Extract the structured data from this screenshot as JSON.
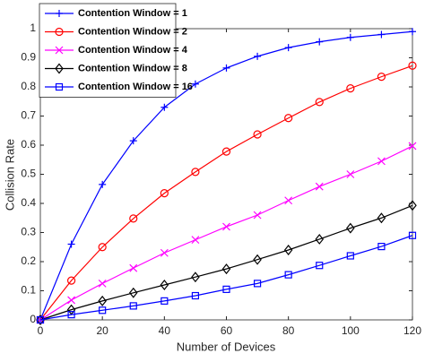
{
  "chart_data": {
    "type": "line",
    "xlabel": "Number of Devices",
    "ylabel": "Collision Rate",
    "x": [
      0,
      10,
      20,
      30,
      40,
      50,
      60,
      70,
      80,
      90,
      100,
      110,
      120
    ],
    "series": [
      {
        "name": "Contention Window = 1",
        "color": "#0000ff",
        "marker": "plus",
        "values": [
          0,
          0.26,
          0.465,
          0.615,
          0.73,
          0.81,
          0.865,
          0.905,
          0.935,
          0.955,
          0.97,
          0.98,
          0.99
        ]
      },
      {
        "name": "Contention Window = 2",
        "color": "#ff0000",
        "marker": "circle",
        "values": [
          0,
          0.135,
          0.25,
          0.348,
          0.435,
          0.508,
          0.578,
          0.637,
          0.693,
          0.748,
          0.795,
          0.835,
          0.873
        ]
      },
      {
        "name": "Contention Window = 4",
        "color": "#ff00ff",
        "marker": "cross",
        "values": [
          0,
          0.068,
          0.125,
          0.178,
          0.23,
          0.275,
          0.32,
          0.36,
          0.41,
          0.458,
          0.5,
          0.545,
          0.597
        ]
      },
      {
        "name": "Contention Window = 8",
        "color": "#000000",
        "marker": "diamond",
        "values": [
          0,
          0.035,
          0.065,
          0.093,
          0.12,
          0.147,
          0.175,
          0.207,
          0.24,
          0.277,
          0.315,
          0.35,
          0.393
        ]
      },
      {
        "name": "Contention Window = 16",
        "color": "#0000ff",
        "marker": "square",
        "values": [
          0,
          0.018,
          0.033,
          0.048,
          0.065,
          0.083,
          0.105,
          0.125,
          0.155,
          0.187,
          0.22,
          0.252,
          0.29
        ]
      }
    ],
    "xlim": [
      0,
      120
    ],
    "xticks": [
      0,
      20,
      40,
      60,
      80,
      100,
      120
    ],
    "ylim": [
      0,
      1
    ],
    "yticks": [
      0,
      0.1,
      0.2,
      0.3,
      0.4,
      0.5,
      0.6,
      0.7,
      0.8,
      0.9,
      1
    ],
    "legend": "upper left",
    "grid": false
  }
}
